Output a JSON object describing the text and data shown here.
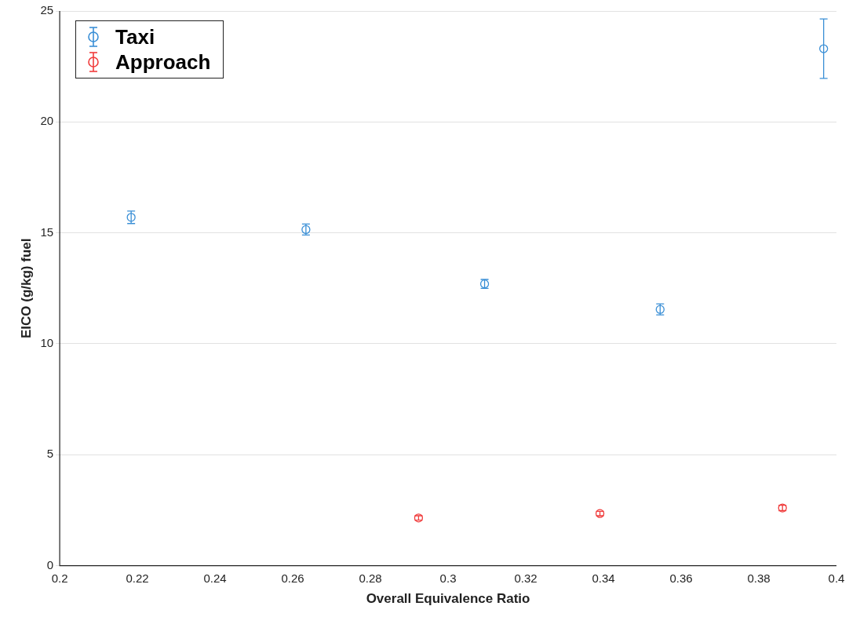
{
  "chart_data": {
    "type": "scatter",
    "xlabel": "Overall Equivalence Ratio",
    "ylabel": "EICO (g/kg) fuel",
    "xlim": [
      0.2,
      0.4
    ],
    "xticks": [
      0.2,
      0.22,
      0.24,
      0.26,
      0.28,
      0.3,
      0.32,
      0.34,
      0.36,
      0.38,
      0.4
    ],
    "ylim": [
      0,
      25
    ],
    "yticks": [
      0,
      5,
      10,
      15,
      20,
      25
    ],
    "grid": "y",
    "legend": "top left",
    "marker": "circle",
    "series": [
      {
        "name": "Taxi",
        "color": "#3a8fd6",
        "x": [
          0.2184,
          0.2634,
          0.3094,
          0.3546,
          0.3967
        ],
        "values": [
          15.7,
          15.15,
          12.7,
          11.55,
          23.3
        ],
        "errors": [
          0.28,
          0.25,
          0.2,
          0.25,
          1.34
        ]
      },
      {
        "name": "Approach",
        "color": "#f03c3c",
        "x": [
          0.2924,
          0.3391,
          0.3861
        ],
        "values": [
          2.15,
          2.35,
          2.6
        ],
        "errors": [
          0.1,
          0.1,
          0.12
        ]
      }
    ]
  }
}
